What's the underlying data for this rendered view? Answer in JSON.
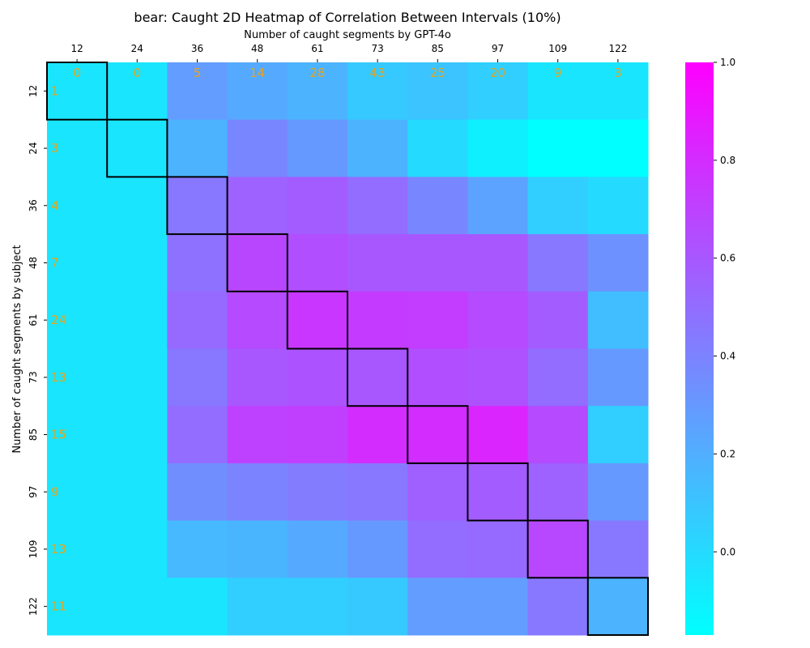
{
  "chart_data": {
    "type": "heatmap",
    "title": "bear: Caught 2D Heatmap of Correlation Between Intervals (10%)",
    "xlabel": "Number of caught segments by GPT-4o",
    "ylabel": "Number of caught segments by subject",
    "x_categories": [
      "12",
      "24",
      "36",
      "48",
      "61",
      "73",
      "85",
      "97",
      "109",
      "122"
    ],
    "y_categories": [
      "12",
      "24",
      "36",
      "48",
      "61",
      "73",
      "85",
      "97",
      "109",
      "122"
    ],
    "x_axis_position": "top",
    "values": [
      [
        -0.05,
        -0.05,
        0.28,
        0.22,
        0.18,
        0.08,
        0.1,
        0.05,
        -0.05,
        -0.05
      ],
      [
        -0.05,
        -0.05,
        0.18,
        0.38,
        0.3,
        0.18,
        0.0,
        -0.1,
        -0.18,
        -0.18
      ],
      [
        -0.05,
        -0.05,
        0.45,
        0.55,
        0.58,
        0.5,
        0.38,
        0.25,
        0.05,
        0.0
      ],
      [
        -0.05,
        -0.05,
        0.48,
        0.68,
        0.64,
        0.6,
        0.6,
        0.6,
        0.45,
        0.33
      ],
      [
        -0.05,
        -0.05,
        0.52,
        0.66,
        0.75,
        0.73,
        0.72,
        0.66,
        0.58,
        0.13
      ],
      [
        -0.05,
        -0.05,
        0.45,
        0.6,
        0.62,
        0.6,
        0.64,
        0.63,
        0.5,
        0.3
      ],
      [
        -0.05,
        -0.05,
        0.5,
        0.7,
        0.71,
        0.8,
        0.8,
        0.83,
        0.66,
        0.05
      ],
      [
        -0.05,
        -0.05,
        0.35,
        0.4,
        0.43,
        0.45,
        0.56,
        0.58,
        0.55,
        0.3
      ],
      [
        -0.05,
        -0.05,
        0.15,
        0.17,
        0.22,
        0.3,
        0.5,
        0.52,
        0.67,
        0.45
      ],
      [
        -0.05,
        -0.05,
        -0.05,
        0.05,
        0.05,
        0.08,
        0.28,
        0.28,
        0.45,
        0.18
      ]
    ],
    "top_counts": [
      "0",
      "0",
      "5",
      "14",
      "28",
      "43",
      "25",
      "20",
      "9",
      "3"
    ],
    "side_counts": [
      "1",
      "3",
      "4",
      "7",
      "24",
      "13",
      "15",
      "9",
      "13",
      "11"
    ],
    "diagonal_highlight": true,
    "colormap": "cool",
    "colorbar": {
      "min": -0.17,
      "max": 1.0,
      "ticks": [
        "0.0",
        "0.2",
        "0.4",
        "0.6",
        "0.8",
        "1.0"
      ]
    },
    "grid": false
  },
  "colors": {
    "annotation": "#e8a317",
    "diagonal_box": "#000000",
    "cmap_low": "#00ffff",
    "cmap_high": "#ff00ff"
  }
}
